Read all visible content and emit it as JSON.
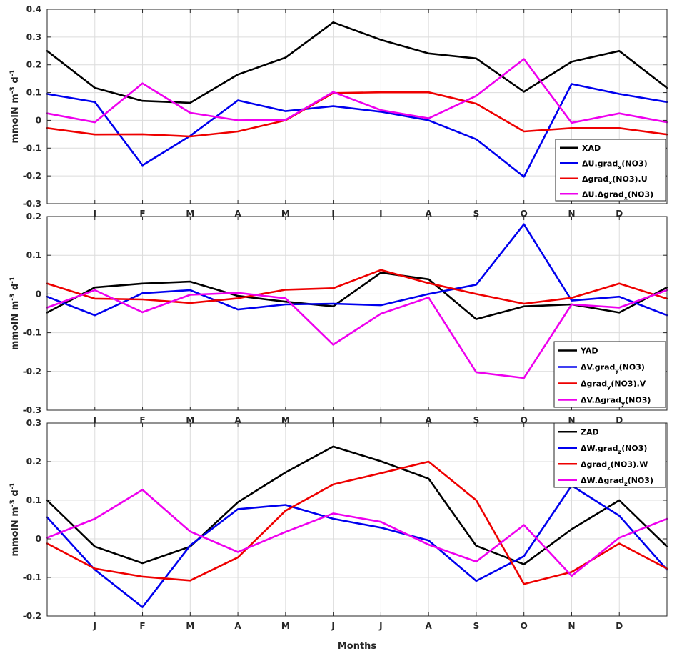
{
  "chart_data": [
    {
      "type": "line",
      "ylabel": "mmolN m-3 d-1",
      "ylim": [
        -0.3,
        0.4
      ],
      "yticks": [
        -0.3,
        -0.2,
        -0.1,
        0,
        0.1,
        0.2,
        0.3,
        0.4
      ],
      "x": [
        0,
        1,
        2,
        3,
        4,
        5,
        6,
        7,
        8,
        9,
        10,
        11,
        12,
        13
      ],
      "xtick_labels": [
        "J",
        "F",
        "M",
        "A",
        "M",
        "J",
        "J",
        "A",
        "S",
        "O",
        "N",
        "D"
      ],
      "xtick_positions": [
        1,
        2,
        3,
        4,
        5,
        6,
        7,
        8,
        9,
        10,
        11,
        12
      ],
      "xlim": [
        0,
        13
      ],
      "legend_position": "bottom-right",
      "series": [
        {
          "name": "XAD",
          "color": "#000000",
          "label": [
            {
              "t": "XAD"
            }
          ],
          "values": [
            0.25,
            0.117,
            0.07,
            0.063,
            0.165,
            0.226,
            0.353,
            0.29,
            0.241,
            0.223,
            0.103,
            0.211,
            0.25,
            0.117
          ]
        },
        {
          "name": "ΔU.grad_x(NO3)",
          "color": "#0000ee",
          "label": [
            {
              "t": "ΔU.grad"
            },
            {
              "t": "x",
              "sub": true
            },
            {
              "t": "(NO3)"
            }
          ],
          "values": [
            0.095,
            0.066,
            -0.162,
            -0.056,
            0.072,
            0.033,
            0.051,
            0.031,
            0.0,
            -0.068,
            -0.203,
            0.131,
            0.095,
            0.066
          ]
        },
        {
          "name": "Δgrad_x(NO3).U",
          "color": "#ee0000",
          "label": [
            {
              "t": "Δgrad"
            },
            {
              "t": "x",
              "sub": true
            },
            {
              "t": "(NO3).U"
            }
          ],
          "values": [
            -0.028,
            -0.051,
            -0.05,
            -0.058,
            -0.04,
            0.0,
            0.098,
            0.101,
            0.101,
            0.06,
            -0.04,
            -0.028,
            -0.028,
            -0.051
          ]
        },
        {
          "name": "ΔU.Δgrad_x(NO3)",
          "color": "#ee00ee",
          "label": [
            {
              "t": "ΔU.Δgrad"
            },
            {
              "t": "x",
              "sub": true
            },
            {
              "t": "(NO3)"
            }
          ],
          "values": [
            0.025,
            -0.007,
            0.133,
            0.027,
            0.0,
            0.002,
            0.102,
            0.037,
            0.007,
            0.088,
            0.221,
            -0.009,
            0.025,
            -0.007
          ]
        }
      ]
    },
    {
      "type": "line",
      "ylabel": "mmolN m-3 d-1",
      "ylim": [
        -0.3,
        0.2
      ],
      "yticks": [
        -0.3,
        -0.2,
        -0.1,
        0,
        0.1,
        0.2
      ],
      "x": [
        0,
        1,
        2,
        3,
        4,
        5,
        6,
        7,
        8,
        9,
        10,
        11,
        12,
        13
      ],
      "xtick_labels": [
        "J",
        "F",
        "M",
        "A",
        "M",
        "J",
        "J",
        "A",
        "S",
        "O",
        "N",
        "D"
      ],
      "xtick_positions": [
        1,
        2,
        3,
        4,
        5,
        6,
        7,
        8,
        9,
        10,
        11,
        12
      ],
      "xlim": [
        0,
        13
      ],
      "legend_position": "bottom-right",
      "series": [
        {
          "name": "YAD",
          "color": "#000000",
          "label": [
            {
              "t": "YAD"
            }
          ],
          "values": [
            -0.048,
            0.017,
            0.027,
            0.032,
            -0.005,
            -0.02,
            -0.032,
            0.055,
            0.038,
            -0.065,
            -0.032,
            -0.027,
            -0.048,
            0.017
          ]
        },
        {
          "name": "ΔV.grad_y(NO3)",
          "color": "#0000ee",
          "label": [
            {
              "t": "ΔV.grad"
            },
            {
              "t": "y",
              "sub": true
            },
            {
              "t": "(NO3)"
            }
          ],
          "values": [
            -0.007,
            -0.055,
            0.002,
            0.01,
            -0.04,
            -0.027,
            -0.025,
            -0.029,
            0.0,
            0.024,
            0.18,
            -0.017,
            -0.007,
            -0.055
          ]
        },
        {
          "name": "Δgrad_y(NO3).V",
          "color": "#ee0000",
          "label": [
            {
              "t": "Δgrad"
            },
            {
              "t": "y",
              "sub": true
            },
            {
              "t": "(NO3).V"
            }
          ],
          "values": [
            0.027,
            -0.012,
            -0.014,
            -0.023,
            -0.011,
            0.011,
            0.015,
            0.062,
            0.028,
            0.0,
            -0.025,
            -0.01,
            0.027,
            -0.012
          ]
        },
        {
          "name": "ΔV.Δgrad_y(NO3)",
          "color": "#ee00ee",
          "label": [
            {
              "t": "ΔV.Δgrad"
            },
            {
              "t": "y",
              "sub": true
            },
            {
              "t": "(NO3)"
            }
          ],
          "values": [
            -0.035,
            0.01,
            -0.047,
            -0.002,
            0.003,
            -0.011,
            -0.131,
            -0.051,
            -0.009,
            -0.202,
            -0.217,
            -0.027,
            -0.035,
            0.01
          ]
        }
      ]
    },
    {
      "type": "line",
      "ylabel": "mmolN m-3 d-1",
      "xlabel": "Months",
      "ylim": [
        -0.2,
        0.3
      ],
      "yticks": [
        -0.2,
        -0.1,
        0,
        0.1,
        0.2,
        0.3
      ],
      "x": [
        0,
        1,
        2,
        3,
        4,
        5,
        6,
        7,
        8,
        9,
        10,
        11,
        12,
        13
      ],
      "xtick_labels": [
        "J",
        "F",
        "M",
        "A",
        "M",
        "J",
        "J",
        "A",
        "S",
        "O",
        "N",
        "D"
      ],
      "xtick_positions": [
        1,
        2,
        3,
        4,
        5,
        6,
        7,
        8,
        9,
        10,
        11,
        12
      ],
      "xlim": [
        0,
        13
      ],
      "legend_position": "top-right",
      "series": [
        {
          "name": "ZAD",
          "color": "#000000",
          "label": [
            {
              "t": "ZAD"
            }
          ],
          "values": [
            0.1,
            -0.02,
            -0.063,
            -0.02,
            0.095,
            0.172,
            0.239,
            0.201,
            0.156,
            -0.018,
            -0.066,
            0.025,
            0.1,
            -0.02
          ]
        },
        {
          "name": "ΔW.grad_z(NO3)",
          "color": "#0000ee",
          "label": [
            {
              "t": "ΔW.grad"
            },
            {
              "t": "z",
              "sub": true
            },
            {
              "t": "(NO3)"
            }
          ],
          "values": [
            0.056,
            -0.08,
            -0.177,
            -0.017,
            0.077,
            0.088,
            0.052,
            0.029,
            -0.004,
            -0.109,
            -0.045,
            0.138,
            0.06,
            -0.08
          ]
        },
        {
          "name": "Δgrad_z(NO3).W",
          "color": "#ee0000",
          "label": [
            {
              "t": "Δgrad"
            },
            {
              "t": "z",
              "sub": true
            },
            {
              "t": "(NO3).W"
            }
          ],
          "values": [
            -0.012,
            -0.077,
            -0.098,
            -0.108,
            -0.048,
            0.073,
            0.141,
            0.17,
            0.2,
            0.1,
            -0.117,
            -0.086,
            -0.012,
            -0.077
          ]
        },
        {
          "name": "ΔW.Δgrad_z(NO3)",
          "color": "#ee00ee",
          "label": [
            {
              "t": "ΔW.Δgrad"
            },
            {
              "t": "z",
              "sub": true
            },
            {
              "t": "(NO3)"
            }
          ],
          "values": [
            0.003,
            0.052,
            0.127,
            0.019,
            -0.034,
            0.018,
            0.066,
            0.044,
            -0.015,
            -0.059,
            0.036,
            -0.096,
            0.003,
            0.052
          ]
        }
      ]
    }
  ]
}
